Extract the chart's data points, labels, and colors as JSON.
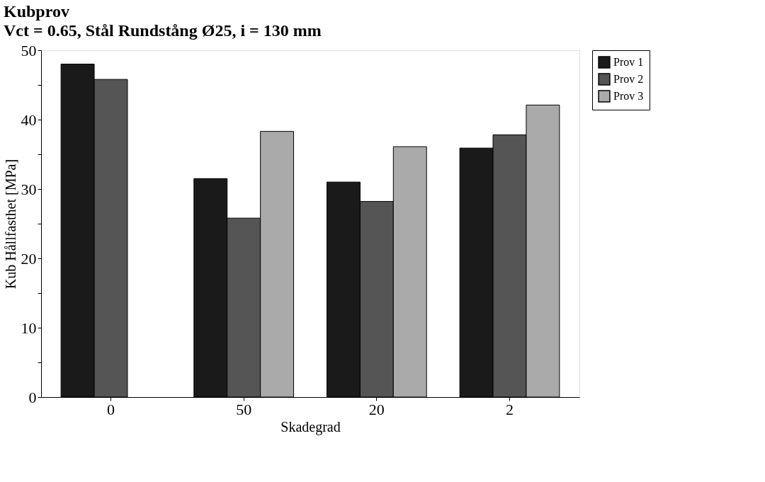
{
  "chart_data": {
    "type": "bar",
    "title": "Kubprov",
    "subtitle": "Vct = 0.65, Stål Rundstång Ø25, i = 130 mm",
    "xlabel": "Skadegrad",
    "ylabel": "Kub Hållfasthet [MPa]",
    "categories": [
      "0",
      "50",
      "20",
      "2"
    ],
    "series": [
      {
        "name": "Prov 1",
        "color": "#1a1a1a",
        "values": [
          48.0,
          31.5,
          31.0,
          35.9
        ]
      },
      {
        "name": "Prov 2",
        "color": "#555555",
        "values": [
          45.8,
          25.8,
          28.2,
          37.8
        ]
      },
      {
        "name": "Prov 3",
        "color": "#aaaaaa",
        "values": [
          null,
          38.3,
          36.1,
          42.1
        ]
      }
    ],
    "ylim": [
      0,
      50
    ],
    "yticks": [
      0,
      {
        "value": 5,
        "label": null
      },
      10,
      {
        "value": 15,
        "label": null
      },
      20,
      {
        "value": 25,
        "label": null
      },
      30,
      {
        "value": 35,
        "label": null
      },
      40,
      {
        "value": 45,
        "label": null
      },
      50
    ],
    "grid": false,
    "legend": "top right"
  }
}
